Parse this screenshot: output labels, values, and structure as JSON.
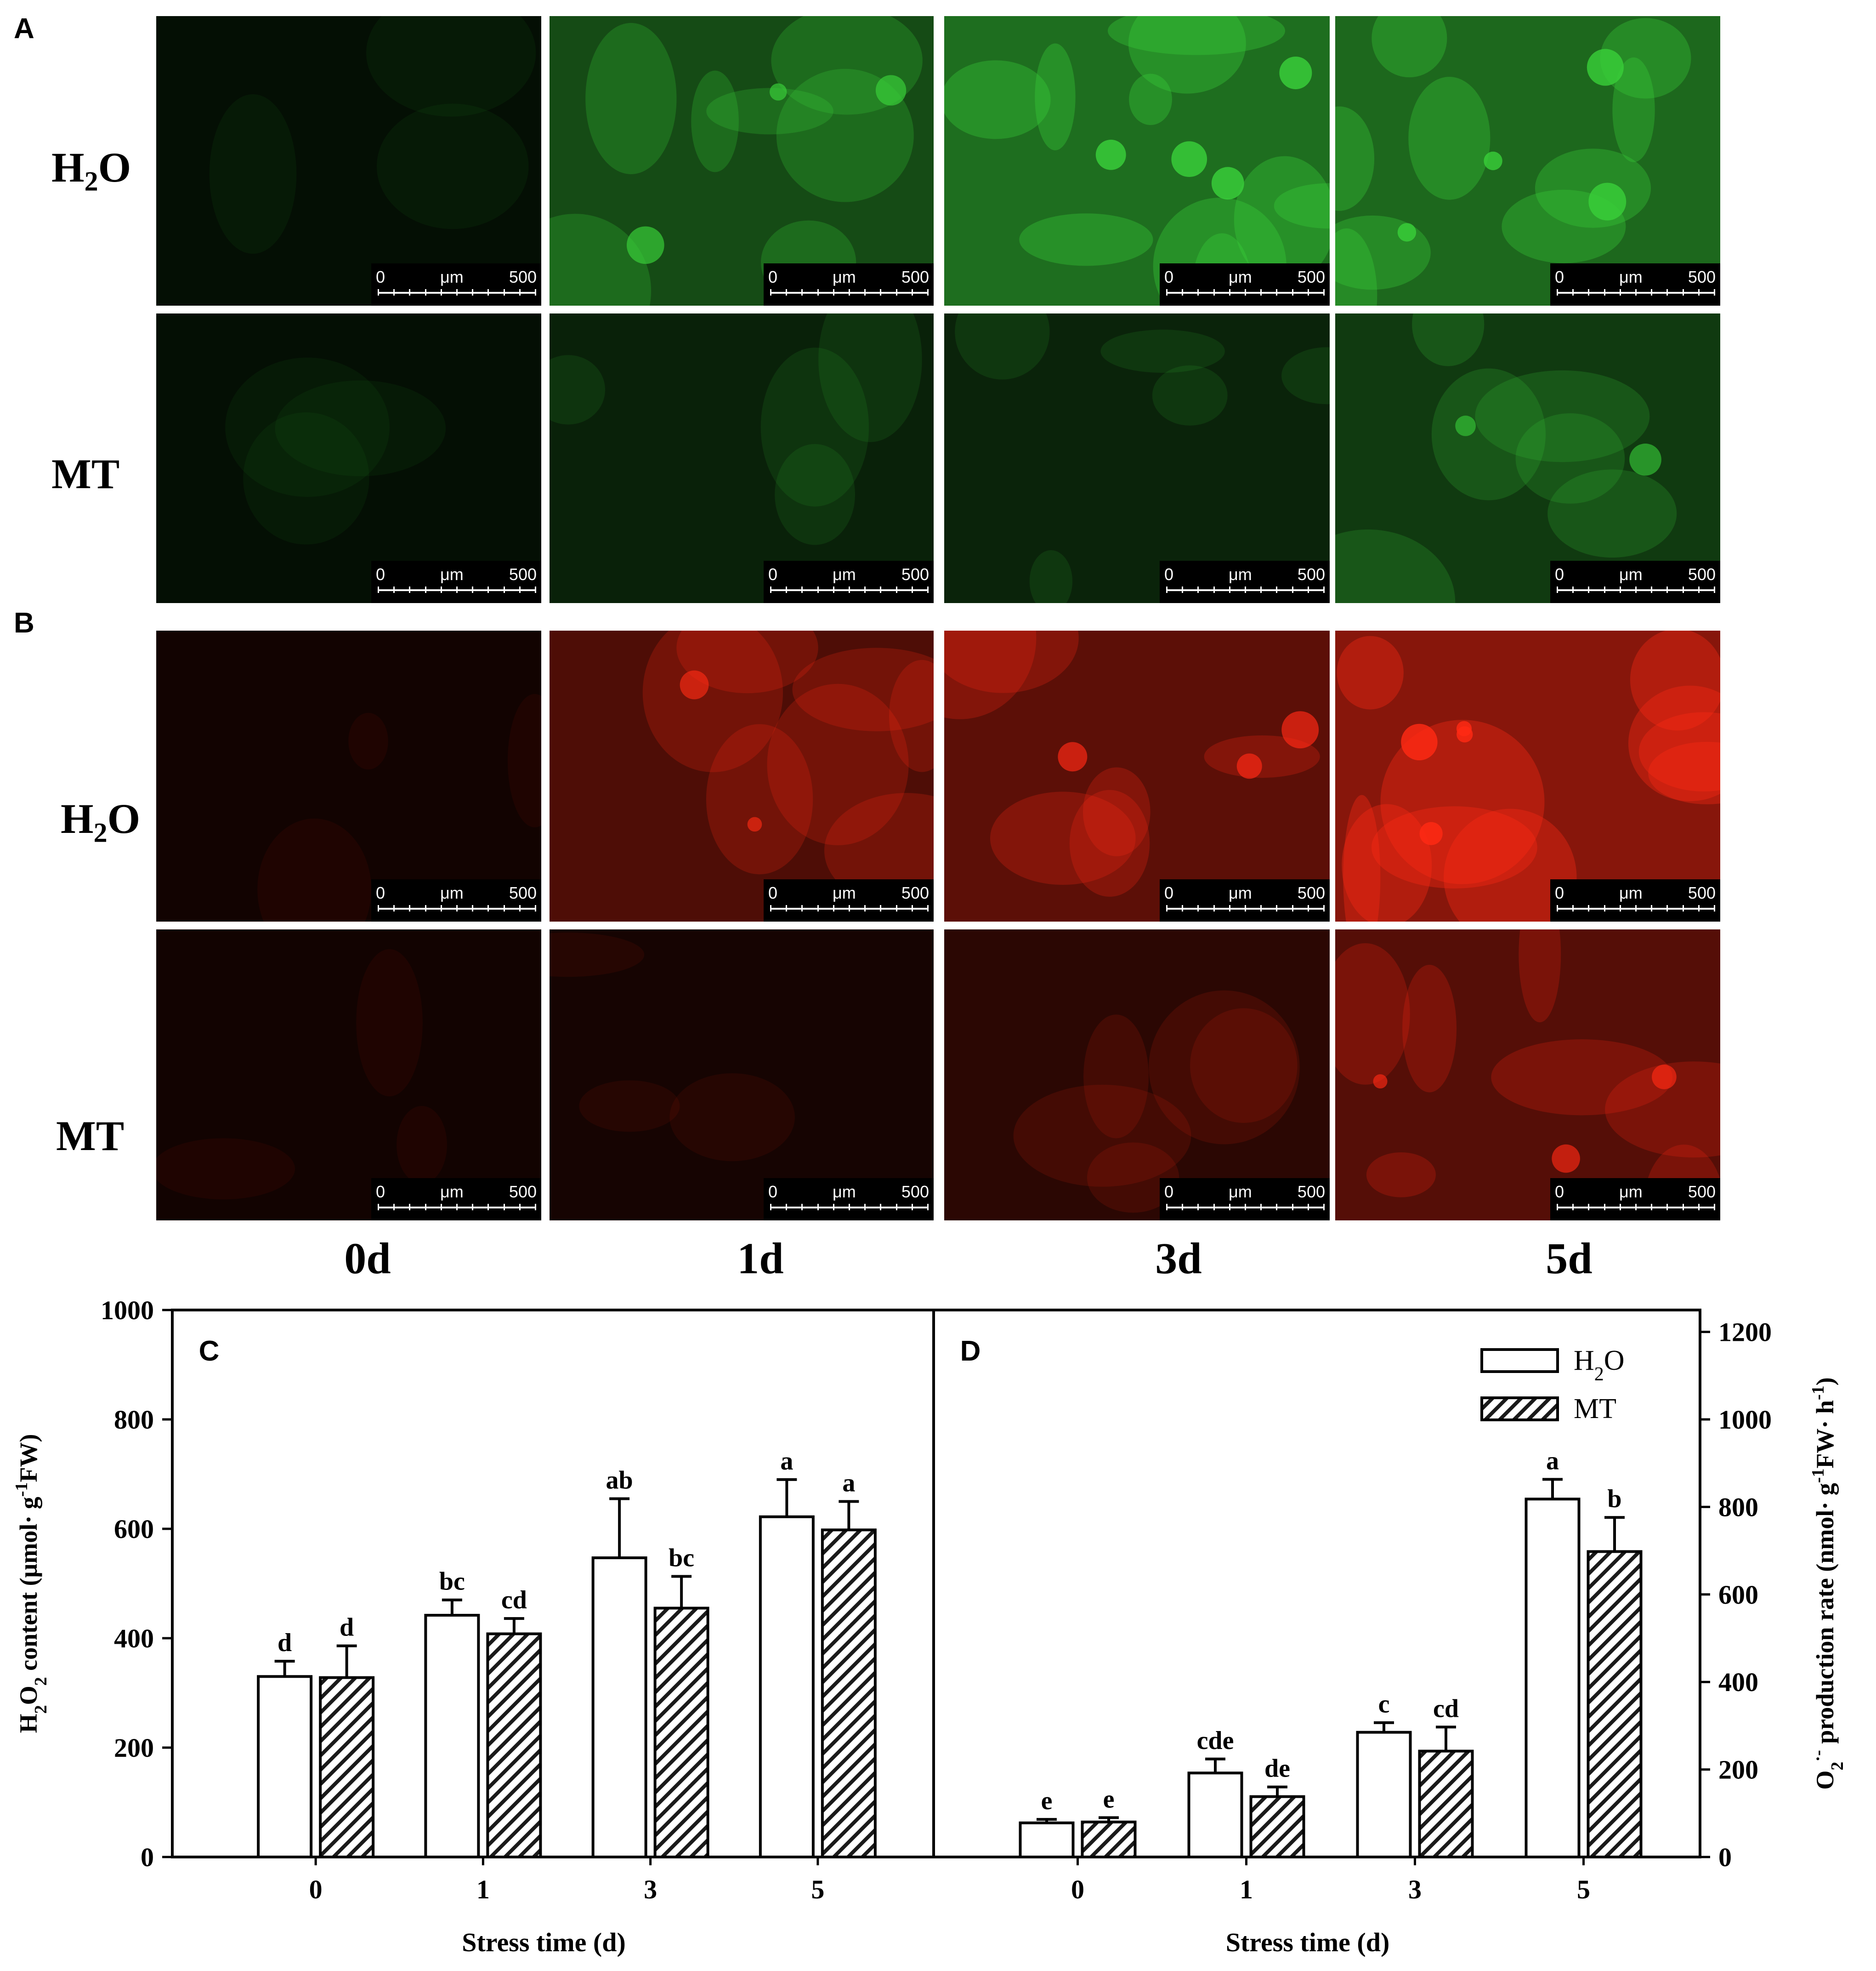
{
  "panels": {
    "A": "A",
    "B": "B"
  },
  "rows": {
    "A_top": {
      "main": "H",
      "sub": "2",
      "rest": "O"
    },
    "A_bottom": {
      "main": "MT",
      "sub": "",
      "rest": ""
    },
    "B_top": {
      "main": "H",
      "sub": "2",
      "rest": "O"
    },
    "B_bottom": {
      "main": "MT",
      "sub": "",
      "rest": ""
    }
  },
  "days": [
    "0d",
    "1d",
    "3d",
    "5d"
  ],
  "scalebar": {
    "start": "0",
    "unit": "μm",
    "end": "500"
  },
  "micrographs": {
    "A": {
      "color": "#39d03a",
      "intensity": [
        [
          0.02,
          0.55,
          0.85,
          0.8
        ],
        [
          0.02,
          0.18,
          0.2,
          0.4
        ]
      ]
    },
    "B": {
      "color": "#ff2a14",
      "intensity": [
        [
          0.02,
          0.45,
          0.55,
          0.85
        ],
        [
          0.02,
          0.05,
          0.2,
          0.5
        ]
      ]
    }
  },
  "chart_data": [
    {
      "type": "bar",
      "panel": "C",
      "categories": [
        "0",
        "1",
        "3",
        "5"
      ],
      "series": [
        {
          "name": "H2O",
          "values": [
            330,
            442,
            547,
            622
          ],
          "errors": [
            28,
            28,
            108,
            68
          ],
          "letters": [
            "d",
            "bc",
            "ab",
            "a"
          ]
        },
        {
          "name": "MT",
          "values": [
            328,
            408,
            455,
            598
          ],
          "errors": [
            58,
            28,
            58,
            52
          ],
          "letters": [
            "d",
            "cd",
            "bc",
            "a"
          ]
        }
      ],
      "xlabel": "Stress time (d)",
      "ylabel": "H2O2 content (μmol· g-1FW)",
      "ylim": [
        0,
        1000
      ],
      "yticks": [
        "0",
        "200",
        "400",
        "600",
        "800",
        "1000"
      ],
      "y_axis_side": "left"
    },
    {
      "type": "bar",
      "panel": "D",
      "categories": [
        "0",
        "1",
        "3",
        "5"
      ],
      "series": [
        {
          "name": "H2O",
          "values": [
            78,
            192,
            285,
            818
          ],
          "errors": [
            8,
            32,
            22,
            45
          ],
          "letters": [
            "e",
            "cde",
            "c",
            "a"
          ]
        },
        {
          "name": "MT",
          "values": [
            80,
            138,
            242,
            698
          ],
          "errors": [
            10,
            22,
            55,
            78
          ],
          "letters": [
            "e",
            "de",
            "cd",
            "b"
          ]
        }
      ],
      "xlabel": "Stress time (d)",
      "ylabel": "O2·- production rate (nmol· g-1FW· h-1)",
      "ylim": [
        0,
        1250
      ],
      "yticks": [
        "0",
        "200",
        "400",
        "600",
        "800",
        "1000",
        "1200"
      ],
      "y_axis_side": "right",
      "legend": {
        "position": "top-right",
        "entries": [
          {
            "main": "H",
            "sub": "2",
            "rest": "O"
          },
          {
            "main": "MT",
            "sub": "",
            "rest": ""
          }
        ]
      }
    }
  ]
}
